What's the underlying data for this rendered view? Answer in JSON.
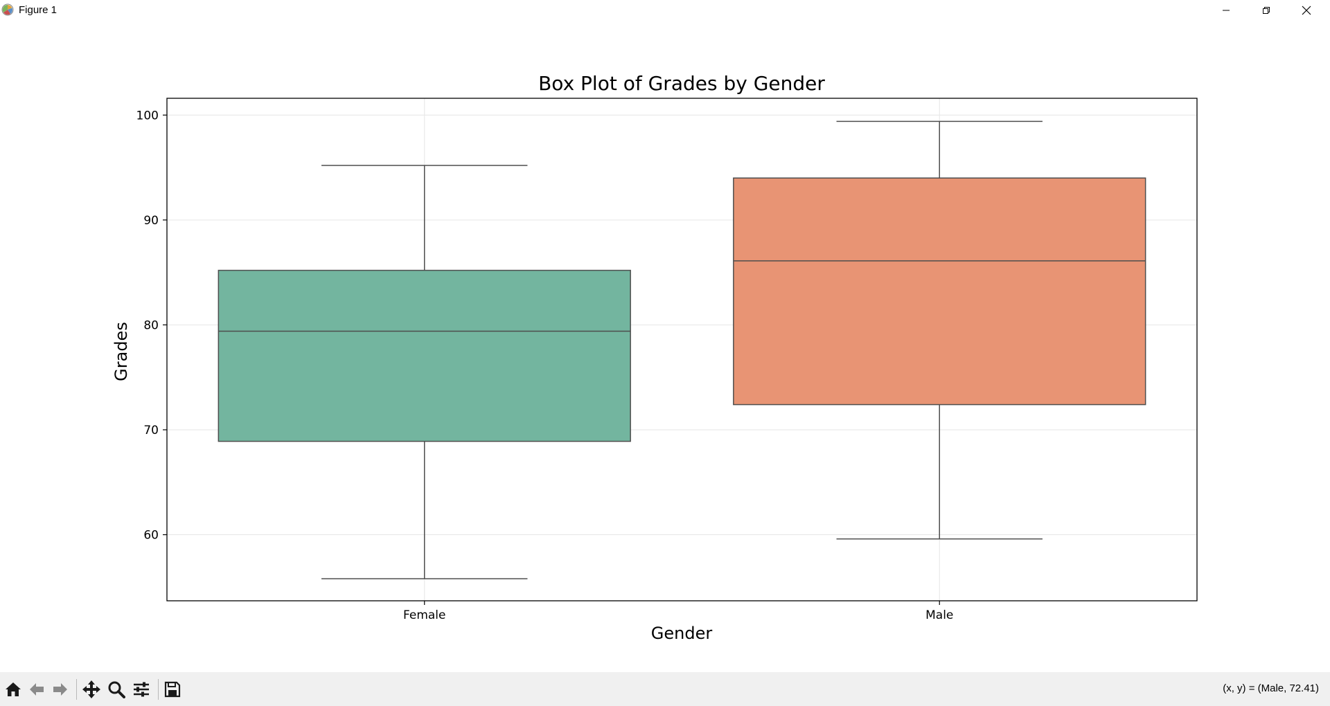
{
  "window": {
    "title": "Figure 1"
  },
  "toolbar": {
    "buttons": [
      "home-icon",
      "back-arrow-icon",
      "forward-arrow-icon",
      "pan-icon",
      "zoom-icon",
      "configure-subplots-icon",
      "save-icon"
    ],
    "coords_text": "(x, y) = (Male, 72.41)"
  },
  "chart_data": {
    "type": "box",
    "title": "Box Plot of Grades by Gender",
    "xlabel": "Gender",
    "ylabel": "Grades",
    "ylim": [
      53.7,
      101.6
    ],
    "yticks": [
      60,
      70,
      80,
      90,
      100
    ],
    "grid": true,
    "categories": [
      "Female",
      "Male"
    ],
    "boxes": [
      {
        "category": "Female",
        "color": "#73b59f",
        "whisker_low": 55.8,
        "q1": 68.9,
        "median": 79.4,
        "q3": 85.2,
        "whisker_high": 95.2
      },
      {
        "category": "Male",
        "color": "#e89474",
        "whisker_low": 59.6,
        "q1": 72.4,
        "median": 86.1,
        "q3": 94.0,
        "whisker_high": 99.4
      }
    ]
  }
}
